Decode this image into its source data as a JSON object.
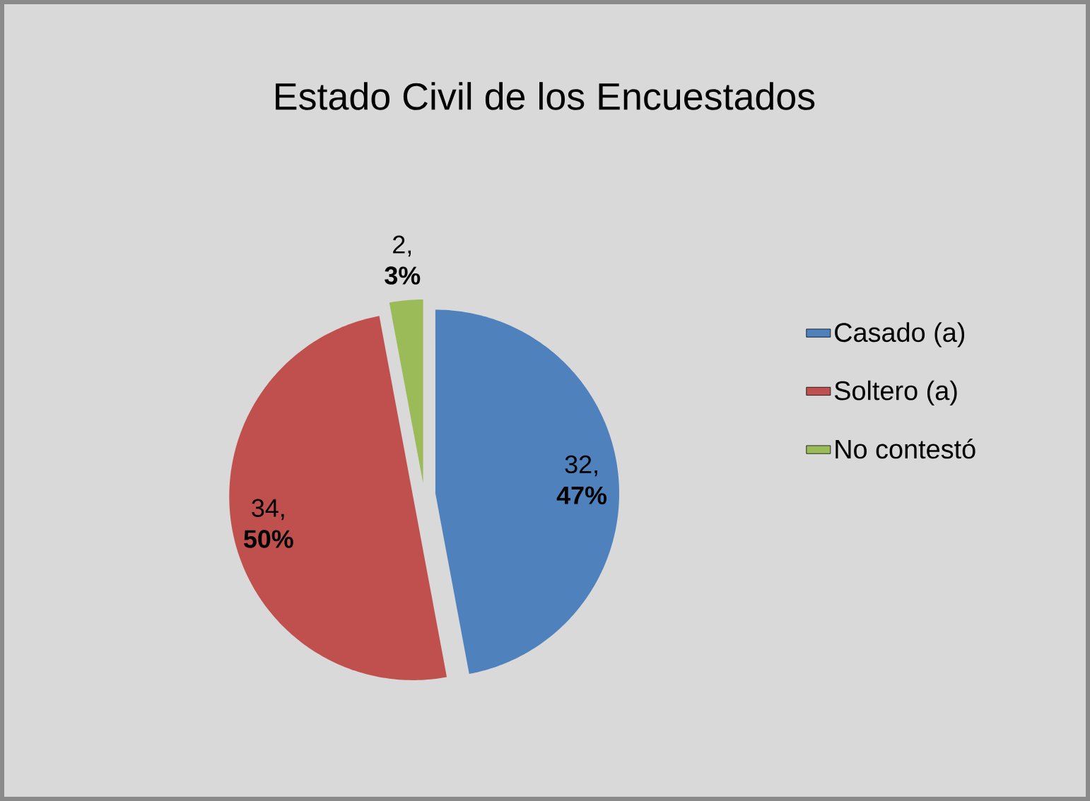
{
  "chart_data": {
    "type": "pie",
    "title": "Estado Civil de los Encuestados",
    "categories": [
      "Casado (a)",
      "Soltero (a)",
      "No contestó"
    ],
    "values": [
      32,
      34,
      2
    ],
    "colors": [
      "#4f81bd",
      "#c0504d",
      "#9bbb59"
    ],
    "value_labels": [
      "32, **47%**",
      "34, **50%**",
      "2, **3%**"
    ],
    "legend": "right"
  }
}
